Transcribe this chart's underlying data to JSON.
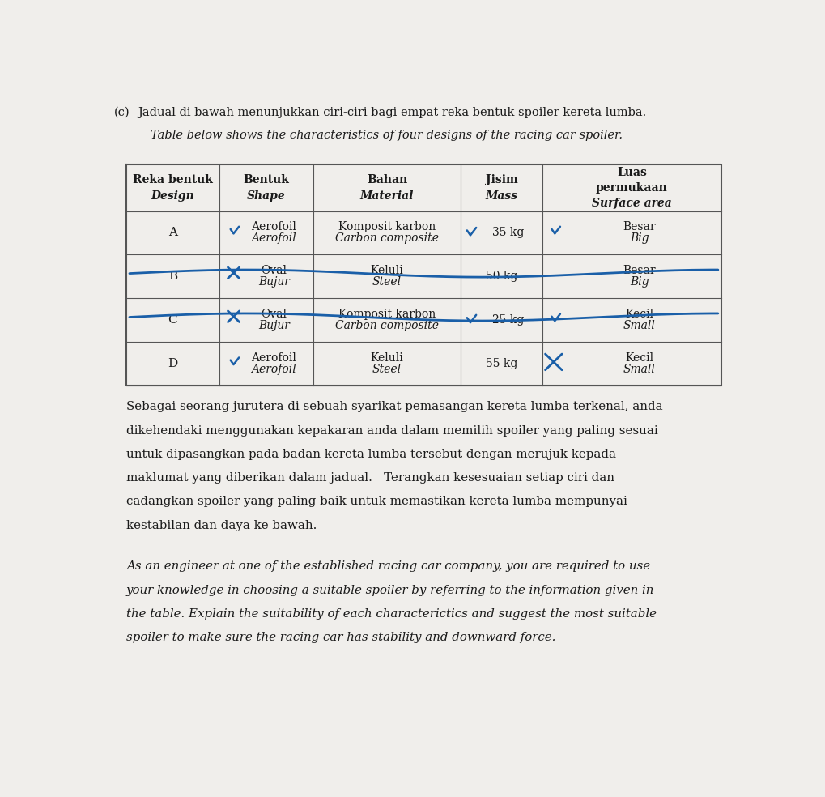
{
  "title_line1": "(c)   Jadual di bawah menunjukkan ciri-ciri bagi empat reka bentuk spoiler kereta lumba.",
  "title_line2": "      Table below shows the characteristics of four designs of the racing car spoiler.",
  "header_cols": [
    {
      "line1": "Reka bentuk",
      "line2": "Design",
      "italic2": true
    },
    {
      "line1": "Bentuk",
      "line2": "Shape",
      "italic2": true
    },
    {
      "line1": "Bahan",
      "line2": "Material",
      "italic2": true
    },
    {
      "line1": "Jisim",
      "line2": "Mass",
      "italic2": true
    },
    {
      "line1": "Luas",
      "line2": "permukaan",
      "line3": "Surface area",
      "italic3": true
    }
  ],
  "rows": [
    {
      "design": "A",
      "shape_top": "Aerofoil",
      "shape_bot": "Aerofoil",
      "shape_check": true,
      "material_top": "Komposit karbon",
      "material_bot": "Carbon composite",
      "mass": "35 kg",
      "mass_check": true,
      "surface_top": "Besar",
      "surface_bot": "Big",
      "surface_check": true,
      "surface_cross": false,
      "strikethrough": false
    },
    {
      "design": "B",
      "shape_top": "Oval",
      "shape_bot": "Bujur",
      "shape_check": false,
      "material_top": "Keluli",
      "material_bot": "Steel",
      "mass": "50 kg",
      "mass_check": false,
      "surface_top": "Besar",
      "surface_bot": "Big",
      "surface_check": false,
      "surface_cross": false,
      "strikethrough": true
    },
    {
      "design": "C",
      "shape_top": "Oval",
      "shape_bot": "Bujur",
      "shape_check": false,
      "material_top": "Komposit karbon",
      "material_bot": "Carbon composite",
      "mass": "25 kg",
      "mass_check": true,
      "surface_top": "Kecil",
      "surface_bot": "Small",
      "surface_check": true,
      "surface_cross": false,
      "strikethrough": true
    },
    {
      "design": "D",
      "shape_top": "Aerofoil",
      "shape_bot": "Aerofoil",
      "shape_check": true,
      "material_top": "Keluli",
      "material_bot": "Steel",
      "mass": "55 kg",
      "mass_check": false,
      "surface_top": "Kecil",
      "surface_bot": "Small",
      "surface_check": false,
      "surface_cross": true,
      "strikethrough": false
    }
  ],
  "malay_lines": [
    "Sebagai seorang jurutera di sebuah syarikat pemasangan kereta lumba terkenal, anda",
    "dikehendaki menggunakan kepakaran anda dalam memilih spoiler yang paling sesuai",
    "untuk dipasangkan pada badan kereta lumba tersebut dengan merujuk kepada",
    "maklumat yang diberikan dalam jadual.   Terangkan kesesuaian setiap ciri dan",
    "cadangkan spoiler yang paling baik untuk memastikan kereta lumba mempunyai",
    "kestabilan dan daya ke bawah."
  ],
  "english_lines": [
    "As an engineer at one of the established racing car company, you are required to use",
    "your knowledge in choosing a suitable spoiler by referring to the information given in",
    "the table. Explain the suitability of each characterictics and suggest the most suitable",
    "spoiler to make sure the racing car has stability and downward force."
  ],
  "bg_color": "#f0eeeb",
  "table_bg": "#ffffff",
  "blue_color": "#1a5fa8",
  "text_color": "#1a1a1a"
}
